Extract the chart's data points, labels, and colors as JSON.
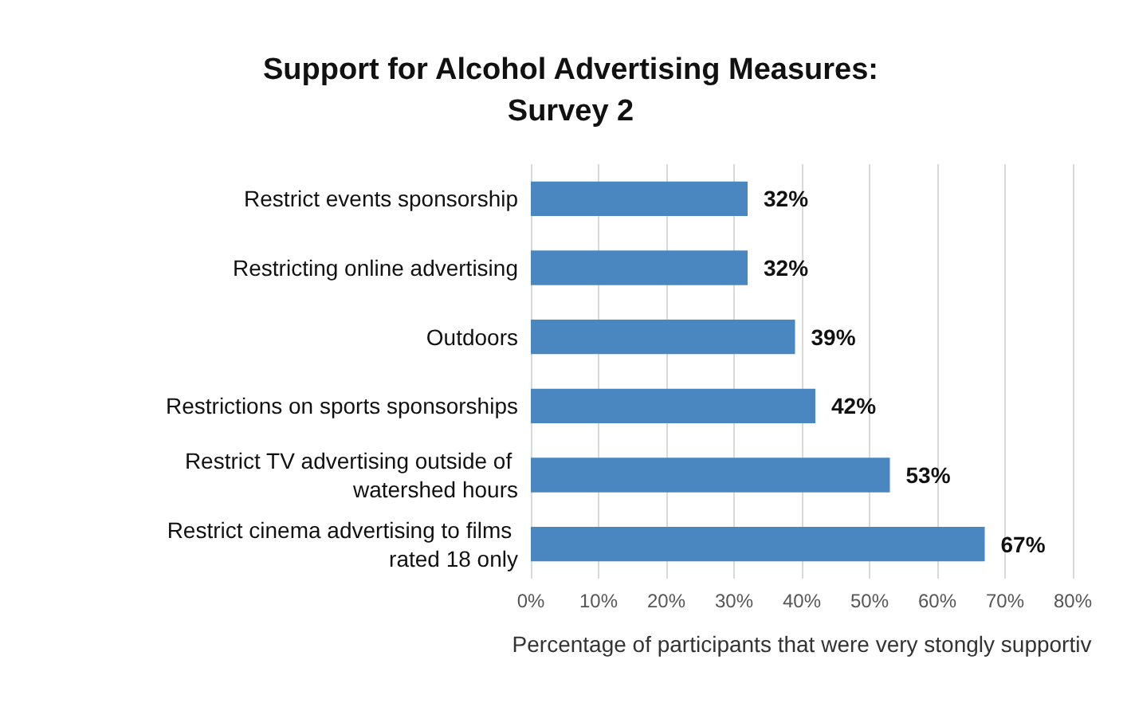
{
  "chart_data": {
    "type": "bar",
    "orientation": "horizontal",
    "title": "Support for Alcohol Advertising Measures:\nSurvey 2",
    "categories": [
      "Restrict events sponsorship",
      "Restricting online advertising",
      "Outdoors",
      "Restrictions on sports sponsorships",
      "Restrict TV advertising outside of watershed hours",
      "Restrict cinema advertising to films rated 18 only"
    ],
    "values": [
      32,
      32,
      39,
      42,
      53,
      67
    ],
    "value_labels": [
      "32%",
      "32%",
      "39%",
      "42%",
      "53%",
      "67%"
    ],
    "color": "#4a86c0",
    "xlabel": "Percentage of participants that were very stongly supportiv",
    "xlim": [
      0,
      80
    ],
    "xticks": [
      {
        "value": 0,
        "label": "0%"
      },
      {
        "value": 10,
        "label": "10%"
      },
      {
        "value": 20,
        "label": "20%"
      },
      {
        "value": 30,
        "label": "30%"
      },
      {
        "value": 40,
        "label": "40%"
      },
      {
        "value": 50,
        "label": "50%"
      },
      {
        "value": 60,
        "label": "60%"
      },
      {
        "value": 70,
        "label": "70%"
      },
      {
        "value": 80,
        "label": "80%"
      }
    ],
    "grid": "x"
  }
}
